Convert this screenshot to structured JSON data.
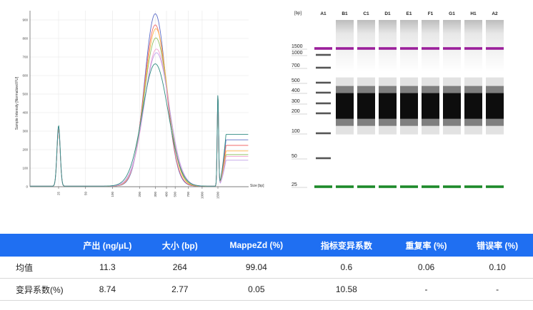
{
  "chart_data": [
    {
      "type": "line",
      "xlabel": "Size [bp]",
      "ylabel": "Sample Intensity [Normalized FU]",
      "x_scale": "log",
      "x_ticks": [
        "25",
        "50",
        "100",
        "200",
        "300",
        "400",
        "500",
        "700",
        "1000",
        "1500"
      ],
      "y_ticks": [
        "0",
        "100",
        "200",
        "300",
        "400",
        "500",
        "600",
        "700",
        "800",
        "900"
      ],
      "ylim": [
        0,
        950
      ],
      "grid": true,
      "marker_peaks": [
        {
          "bp": 25,
          "height": 320
        },
        {
          "bp": 1500,
          "height": 490
        }
      ],
      "series": [
        {
          "color": "#5b6cc7",
          "peak_bp": 300,
          "peak_height": 930,
          "width": 0.3,
          "end_height": 250
        },
        {
          "color": "#f06a6a",
          "peak_bp": 300,
          "peak_height": 870,
          "width": 0.31,
          "end_height": 220
        },
        {
          "color": "#ffb347",
          "peak_bp": 305,
          "peak_height": 850,
          "width": 0.32,
          "end_height": 190
        },
        {
          "color": "#90c060",
          "peak_bp": 305,
          "peak_height": 800,
          "width": 0.33,
          "end_height": 170
        },
        {
          "color": "#f2a0d0",
          "peak_bp": 310,
          "peak_height": 740,
          "width": 0.34,
          "end_height": 160
        },
        {
          "color": "#c0a0e8",
          "peak_bp": 310,
          "peak_height": 720,
          "width": 0.35,
          "end_height": 140
        },
        {
          "color": "#2f8a80",
          "peak_bp": 300,
          "peak_height": 660,
          "width": 0.36,
          "end_height": 280
        }
      ]
    },
    {
      "type": "gel",
      "size_unit_label": "[bp]",
      "lanes": [
        "A1",
        "B1",
        "C1",
        "D1",
        "E1",
        "F1",
        "G1",
        "H1",
        "A2"
      ],
      "ladder_labels": [
        "1500",
        "1000",
        "700",
        "500",
        "400",
        "300",
        "200",
        "100",
        "50",
        "25"
      ],
      "ladder_bp": [
        1500,
        1000,
        700,
        500,
        400,
        300,
        200,
        100,
        50,
        25
      ],
      "upper_marker_color": "#9b1f9b",
      "lower_marker_color": "#1d8a2a",
      "sample_band_bp": 270
    }
  ],
  "table": {
    "headers": [
      "",
      "产出 (ng/μL)",
      "大小 (bp)",
      "MappeZd (%)",
      "指标变异系数",
      "重复率 (%)",
      "错误率 (%)"
    ],
    "rows": [
      [
        "均值",
        "11.3",
        "264",
        "99.04",
        "0.6",
        "0.06",
        "0.10"
      ],
      [
        "变异系数(%)",
        "8.74",
        "2.77",
        "0.05",
        "10.58",
        "-",
        "-"
      ]
    ],
    "header_color": "#1f6ff2"
  }
}
